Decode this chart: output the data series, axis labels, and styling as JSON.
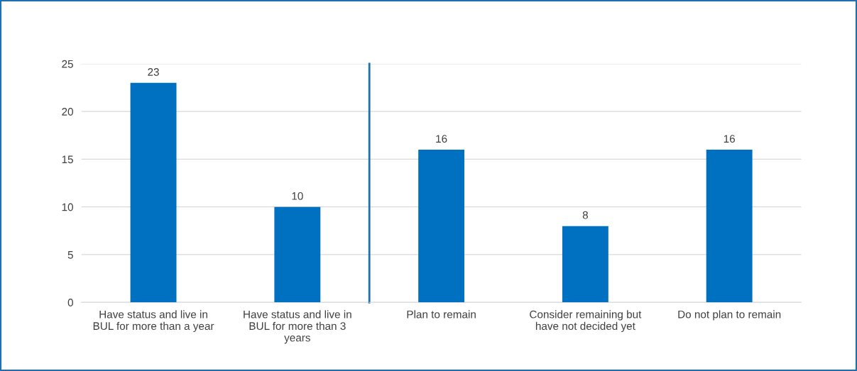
{
  "chart_data": [
    {
      "type": "bar",
      "categories": [
        "Have status and live in\nBUL for more than a year",
        "Have status and live in\nBUL for more than 3\nyears"
      ],
      "values": [
        23,
        10
      ],
      "color": "#0070c0",
      "ylim": [
        0,
        25
      ],
      "yticks": [
        0,
        5,
        10,
        15,
        20,
        25
      ],
      "grid": "y",
      "data_labels": true
    },
    {
      "type": "bar",
      "categories": [
        "Plan to remain",
        "Consider remaining but\nhave not decided yet",
        "Do not plan to remain"
      ],
      "values": [
        16,
        8,
        16
      ],
      "color": "#0070c0",
      "ylim": [
        0,
        25
      ],
      "yticks": [
        0,
        5,
        10,
        15,
        20,
        25
      ],
      "grid": "y",
      "data_labels": true,
      "tick_labels": "x"
    }
  ]
}
